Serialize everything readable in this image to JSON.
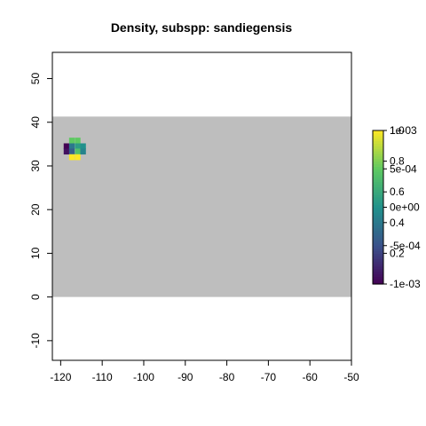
{
  "chart_data": {
    "type": "heatmap",
    "title": "Density, subspp: sandiegensis",
    "xlabel": "",
    "ylabel": "",
    "xlim": [
      -122,
      -50
    ],
    "ylim": [
      -14.5,
      56
    ],
    "x_ticks": [
      "-120",
      "-110",
      "-100",
      "-90",
      "-80",
      "-70",
      "-60",
      "-50"
    ],
    "y_ticks": [
      "-10",
      "0",
      "10",
      "20",
      "30",
      "40",
      "50"
    ],
    "background_band": {
      "lon_range": [
        -122,
        -50
      ],
      "lat_range": [
        0,
        41.3
      ],
      "color": "#bebebe"
    },
    "cell_size_deg": 1.35,
    "cells": [
      {
        "lon": -118.6,
        "lat": 34.5,
        "value": 0.0
      },
      {
        "lon": -118.6,
        "lat": 33.3,
        "value": 0.05
      },
      {
        "lon": -117.3,
        "lat": 35.8,
        "value": 0.75
      },
      {
        "lon": -117.3,
        "lat": 34.5,
        "value": 0.4
      },
      {
        "lon": -117.3,
        "lat": 33.3,
        "value": 0.3
      },
      {
        "lon": -117.3,
        "lat": 32.0,
        "value": 1.0
      },
      {
        "lon": -115.9,
        "lat": 35.8,
        "value": 0.75
      },
      {
        "lon": -115.9,
        "lat": 34.5,
        "value": 0.55
      },
      {
        "lon": -115.9,
        "lat": 33.3,
        "value": 0.7
      },
      {
        "lon": -115.9,
        "lat": 32.0,
        "value": 1.0
      },
      {
        "lon": -114.6,
        "lat": 34.5,
        "value": 0.5
      },
      {
        "lon": -114.6,
        "lat": 33.3,
        "value": 0.45
      }
    ],
    "colorbar": {
      "colors": [
        "#440154",
        "#3b528b",
        "#21918c",
        "#5ec962",
        "#fde725"
      ],
      "left_labels": [
        "1.0",
        "0.8",
        "0.6",
        "0.4",
        "0.2"
      ],
      "left_values": [
        1.0,
        0.8,
        0.6,
        0.4,
        0.2
      ],
      "right_labels": [
        "1e-03",
        "5e-04",
        "0e+00",
        "-5e-04",
        "-1e-03"
      ],
      "right_values": [
        0.001,
        0.0005,
        0,
        -0.0005,
        -0.001
      ]
    }
  }
}
